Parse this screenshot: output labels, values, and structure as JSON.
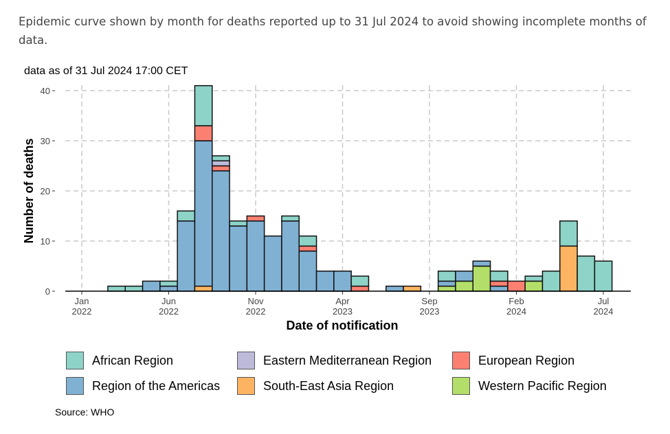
{
  "intro_text": "Epidemic curve shown by month for deaths reported up to 31 Jul 2024 to avoid showing incomplete months of data.",
  "source": "Source: WHO",
  "chart_data": {
    "type": "bar",
    "stacked": true,
    "subtitle": "data as of 31 Jul 2024 17:00 CET",
    "xlabel": "Date of notification",
    "ylabel": "Number of deaths",
    "ylim": [
      0,
      41
    ],
    "yticks": [
      0,
      10,
      20,
      30,
      40
    ],
    "xticks": [
      {
        "month": "2022-01",
        "label1": "Jan",
        "label2": "2022"
      },
      {
        "month": "2022-06",
        "label1": "Jun",
        "label2": "2022"
      },
      {
        "month": "2022-11",
        "label1": "Nov",
        "label2": "2022"
      },
      {
        "month": "2023-04",
        "label1": "Apr",
        "label2": "2023"
      },
      {
        "month": "2023-09",
        "label1": "Sep",
        "label2": "2023"
      },
      {
        "month": "2024-02",
        "label1": "Feb",
        "label2": "2024"
      },
      {
        "month": "2024-07",
        "label1": "Jul",
        "label2": "2024"
      }
    ],
    "grid": true,
    "legend_position": "bottom",
    "categories": [
      "2022-01",
      "2022-02",
      "2022-03",
      "2022-04",
      "2022-05",
      "2022-06",
      "2022-07",
      "2022-08",
      "2022-09",
      "2022-10",
      "2022-11",
      "2022-12",
      "2023-01",
      "2023-02",
      "2023-03",
      "2023-04",
      "2023-05",
      "2023-06",
      "2023-07",
      "2023-08",
      "2023-09",
      "2023-10",
      "2023-11",
      "2023-12",
      "2024-01",
      "2024-02",
      "2024-03",
      "2024-04",
      "2024-05",
      "2024-06",
      "2024-07"
    ],
    "series": [
      {
        "name": "African Region",
        "color": "#8dd3c7",
        "values": [
          0,
          0,
          1,
          1,
          0,
          1,
          2,
          8,
          1,
          1,
          0,
          0,
          1,
          2,
          0,
          0,
          2,
          0,
          0,
          0,
          0,
          2,
          0,
          0,
          2,
          0,
          1,
          4,
          5,
          7,
          6
        ]
      },
      {
        "name": "Eastern Mediterranean Region",
        "color": "#bebada",
        "values": [
          0,
          0,
          0,
          0,
          0,
          0,
          0,
          0,
          1,
          0,
          0,
          0,
          0,
          0,
          0,
          0,
          0,
          0,
          0,
          0,
          0,
          0,
          0,
          0,
          0,
          0,
          0,
          0,
          0,
          0,
          0
        ]
      },
      {
        "name": "European Region",
        "color": "#fb8072",
        "values": [
          0,
          0,
          0,
          0,
          0,
          0,
          0,
          3,
          1,
          0,
          1,
          0,
          0,
          1,
          0,
          0,
          1,
          0,
          0,
          0,
          0,
          0,
          0,
          0,
          1,
          2,
          0,
          0,
          0,
          0,
          0
        ]
      },
      {
        "name": "Region of the Americas",
        "color": "#80b1d3",
        "values": [
          0,
          0,
          0,
          0,
          2,
          1,
          14,
          29,
          24,
          13,
          14,
          11,
          14,
          8,
          4,
          4,
          0,
          0,
          1,
          0,
          0,
          1,
          2,
          1,
          1,
          0,
          0,
          0,
          0,
          0,
          0
        ]
      },
      {
        "name": "South-East Asia Region",
        "color": "#fdb462",
        "values": [
          0,
          0,
          0,
          0,
          0,
          0,
          0,
          1,
          0,
          0,
          0,
          0,
          0,
          0,
          0,
          0,
          0,
          0,
          0,
          1,
          0,
          0,
          0,
          0,
          0,
          0,
          0,
          0,
          9,
          0,
          0
        ]
      },
      {
        "name": "Western Pacific Region",
        "color": "#b3de69",
        "values": [
          0,
          0,
          0,
          0,
          0,
          0,
          0,
          0,
          0,
          0,
          0,
          0,
          0,
          0,
          0,
          0,
          0,
          0,
          0,
          0,
          0,
          1,
          2,
          5,
          0,
          0,
          2,
          0,
          0,
          0,
          0
        ]
      }
    ]
  }
}
